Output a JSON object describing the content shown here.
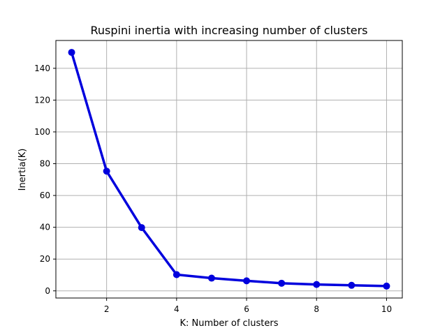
{
  "chart_data": {
    "type": "line",
    "title": "Ruspini inertia with increasing number of clusters",
    "xlabel": "K: Number of clusters",
    "ylabel": "Inertia(K)",
    "x": [
      1,
      2,
      3,
      4,
      5,
      6,
      7,
      8,
      9,
      10
    ],
    "series": [
      {
        "values": [
          150,
          75.3,
          39.8,
          10.2,
          8.0,
          6.3,
          4.8,
          4.0,
          3.5,
          3.0
        ],
        "color": "#0000dd",
        "marker": "circle"
      }
    ],
    "xlim": [
      0.55,
      10.45
    ],
    "ylim": [
      -4.5,
      157.5
    ],
    "xticks": [
      2,
      4,
      6,
      8,
      10
    ],
    "yticks": [
      0,
      20,
      40,
      60,
      80,
      100,
      120,
      140
    ],
    "grid": true,
    "legend": "none"
  }
}
